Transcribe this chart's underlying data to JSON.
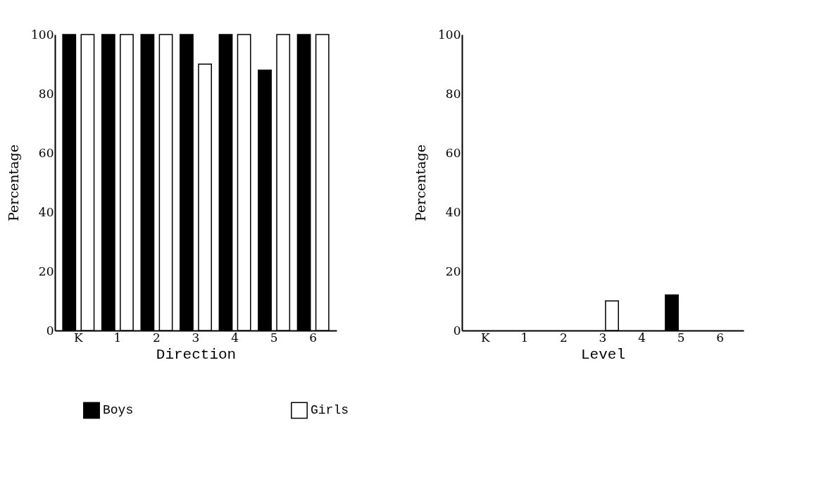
{
  "chart_data": [
    {
      "type": "bar",
      "categories": [
        "K",
        "1",
        "2",
        "3",
        "4",
        "5",
        "6"
      ],
      "xlabel": "Direction",
      "ylabel": "Percentage",
      "ylim": [
        0,
        100
      ],
      "yticks": [
        0,
        20,
        40,
        60,
        80,
        100
      ],
      "grid": false,
      "legend": "bottom",
      "series": [
        {
          "name": "Boys",
          "color": "#000000",
          "values": [
            100,
            100,
            100,
            100,
            100,
            88,
            100
          ]
        },
        {
          "name": "Girls",
          "color": "#ffffff",
          "values": [
            100,
            100,
            100,
            90,
            100,
            100,
            100
          ]
        }
      ]
    },
    {
      "type": "bar",
      "categories": [
        "K",
        "1",
        "2",
        "3",
        "4",
        "5",
        "6"
      ],
      "xlabel": "Level",
      "ylabel": "Percentage",
      "ylim": [
        0,
        100
      ],
      "yticks": [
        0,
        20,
        40,
        60,
        80,
        100
      ],
      "grid": false,
      "legend": "bottom",
      "series": [
        {
          "name": "Boys",
          "color": "#000000",
          "values": [
            0,
            0,
            0,
            0,
            0,
            12,
            0
          ]
        },
        {
          "name": "Girls",
          "color": "#ffffff",
          "values": [
            0,
            0,
            0,
            10,
            0,
            0,
            0
          ]
        }
      ]
    }
  ]
}
